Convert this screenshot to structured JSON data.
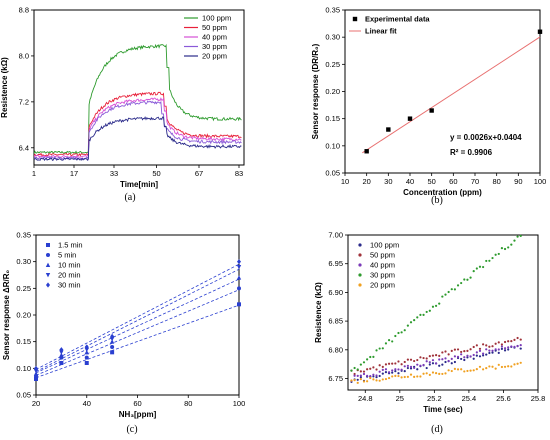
{
  "chart_data": [
    {
      "id": "a",
      "type": "line",
      "caption": "(a)",
      "xlabel": "Time[min]",
      "ylabel": "Resistence (kΩ)",
      "xlim": [
        1,
        85
      ],
      "ylim": [
        6.1,
        8.8
      ],
      "xticks": [
        1,
        17,
        33,
        50,
        67,
        83
      ],
      "yticks": [
        6.4,
        7.2,
        8.0,
        8.8
      ],
      "legend_position": "top-right",
      "grid": false,
      "series": [
        {
          "name": "100 ppm",
          "color": "#2e9b2e",
          "base": 6.32,
          "plateau": 8.18,
          "recovery": 6.9,
          "t_on": 23,
          "t_off": 54
        },
        {
          "name": "50 ppm",
          "color": "#e8213a",
          "base": 6.28,
          "plateau": 7.35,
          "recovery": 6.6,
          "t_on": 23,
          "t_off": 53
        },
        {
          "name": "40 ppm",
          "color": "#d64fd6",
          "base": 6.25,
          "plateau": 7.25,
          "recovery": 6.55,
          "t_on": 23,
          "t_off": 53
        },
        {
          "name": "30 ppm",
          "color": "#8a5ad8",
          "base": 6.22,
          "plateau": 7.2,
          "recovery": 6.5,
          "t_on": 23,
          "t_off": 52
        },
        {
          "name": "20 ppm",
          "color": "#2a2a8a",
          "base": 6.2,
          "plateau": 6.92,
          "recovery": 6.42,
          "t_on": 23,
          "t_off": 53
        }
      ]
    },
    {
      "id": "b",
      "type": "scatter",
      "caption": "(b)",
      "xlabel": "Concentration (ppm)",
      "ylabel": "Sensor response (DR/R₀)",
      "xlim": [
        10,
        100
      ],
      "ylim": [
        0.05,
        0.35
      ],
      "xticks": [
        10,
        20,
        30,
        40,
        50,
        60,
        70,
        80,
        90,
        100
      ],
      "yticks": [
        0.05,
        0.1,
        0.15,
        0.2,
        0.25,
        0.3,
        0.35
      ],
      "legend_position": "top-left",
      "grid": false,
      "points": {
        "name": "Experimental data",
        "color": "#000000",
        "x": [
          20,
          30,
          40,
          50,
          100
        ],
        "y": [
          0.09,
          0.13,
          0.15,
          0.165,
          0.31
        ]
      },
      "fit": {
        "name": "Linear fit",
        "color": "#e87070",
        "slope": 0.0026,
        "intercept": 0.0404,
        "x": [
          10,
          100
        ]
      },
      "equation": "y = 0.0026x+0.0404",
      "r_squared": "R² = 0.9906"
    },
    {
      "id": "c",
      "type": "scatter",
      "caption": "(c)",
      "xlabel": "NH₃[ppm]",
      "ylabel": "Sensor response ΔR/R₀",
      "xlim": [
        20,
        100
      ],
      "ylim": [
        0.05,
        0.35
      ],
      "xticks": [
        20,
        40,
        60,
        80,
        100
      ],
      "yticks": [
        0.05,
        0.1,
        0.15,
        0.2,
        0.25,
        0.3,
        0.35
      ],
      "legend_position": "top-left",
      "grid": false,
      "color": "#2a3fd0",
      "series": [
        {
          "name": "1.5 min",
          "marker": "square",
          "x": [
            20,
            30,
            40,
            50,
            100
          ],
          "y": [
            0.08,
            0.11,
            0.11,
            0.13,
            0.22
          ]
        },
        {
          "name": "5 min",
          "marker": "circle",
          "x": [
            20,
            30,
            40,
            50,
            100
          ],
          "y": [
            0.085,
            0.12,
            0.12,
            0.14,
            0.25
          ]
        },
        {
          "name": "10 min",
          "marker": "triangle-up",
          "x": [
            20,
            30,
            40,
            50,
            100
          ],
          "y": [
            0.09,
            0.125,
            0.13,
            0.15,
            0.27
          ]
        },
        {
          "name": "20 min",
          "marker": "triangle-down",
          "x": [
            20,
            30,
            40,
            50,
            100
          ],
          "y": [
            0.095,
            0.13,
            0.135,
            0.155,
            0.29
          ]
        },
        {
          "name": "30 min",
          "marker": "diamond",
          "x": [
            20,
            30,
            40,
            50,
            100
          ],
          "y": [
            0.1,
            0.135,
            0.14,
            0.16,
            0.3
          ]
        }
      ]
    },
    {
      "id": "d",
      "type": "scatter",
      "caption": "(d)",
      "xlabel": "Time (sec)",
      "ylabel": "Resistence (kΩ)",
      "xlim": [
        24.7,
        25.8
      ],
      "ylim": [
        6.73,
        7.0
      ],
      "xticks": [
        24.8,
        25.0,
        25.2,
        25.4,
        25.6,
        25.8
      ],
      "yticks": [
        6.75,
        6.8,
        6.85,
        6.9,
        6.95,
        7.0
      ],
      "legend_position": "top-left",
      "grid": false,
      "series": [
        {
          "name": "100 ppm",
          "color": "#2a2a8a",
          "y0": 6.745,
          "y1": 6.805
        },
        {
          "name": "50 ppm",
          "color": "#a0323a",
          "y0": 6.76,
          "y1": 6.82
        },
        {
          "name": "40 ppm",
          "color": "#7a3ab8",
          "y0": 6.75,
          "y1": 6.81
        },
        {
          "name": "30 ppm",
          "color": "#2e9b2e",
          "y0": 6.76,
          "y1": 7.0
        },
        {
          "name": "20 ppm",
          "color": "#f0a020",
          "y0": 6.745,
          "y1": 6.775
        }
      ],
      "x_start": 24.72,
      "x_end": 25.7
    }
  ]
}
